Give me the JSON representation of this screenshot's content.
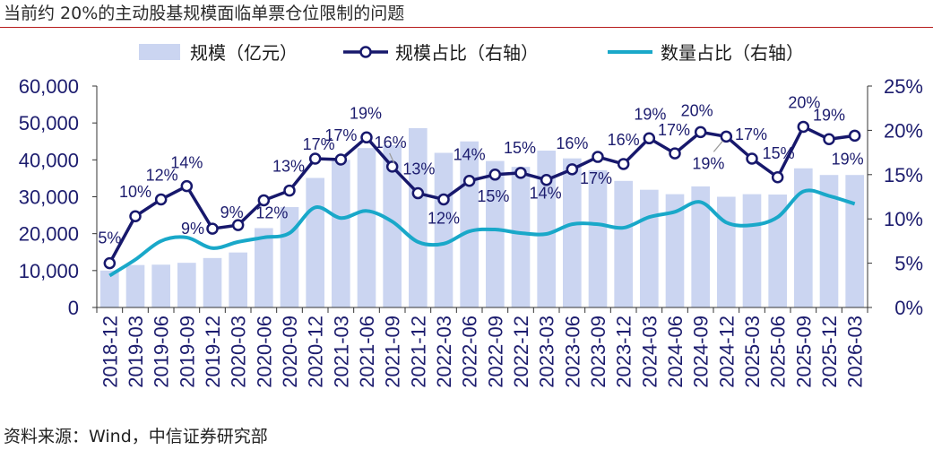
{
  "title": "当前约 20%的主动股基规模面临单票仓位限制的问题",
  "source": "资料来源：Wind，中信证券研究部",
  "colors": {
    "bar": "#cbd5f1",
    "share_line": "#17186c",
    "count_line": "#19a8c9",
    "axis_text": "#1c1c6e",
    "axis_line": "#333333",
    "rule": "#b71c1c"
  },
  "chart_data": {
    "type": "bar",
    "legend_position": "top",
    "grid": false,
    "categories": [
      "2018-12",
      "2019-03",
      "2019-06",
      "2019-09",
      "2019-12",
      "2020-03",
      "2020-06",
      "2020-09",
      "2020-12",
      "2021-03",
      "2021-06",
      "2021-09",
      "2021-12",
      "2022-03",
      "2022-06",
      "2022-09",
      "2022-12",
      "2023-03",
      "2023-06",
      "2023-09",
      "2023-12",
      "2024-03",
      "2024-06",
      "2024-09",
      "2024-12",
      "2025-03",
      "2025-06",
      "2025-09",
      "2025-12",
      "2026-03"
    ],
    "ylim": [
      0,
      60000
    ],
    "y_ticks": [
      "0",
      "10,000",
      "20,000",
      "30,000",
      "40,000",
      "50,000",
      "60,000"
    ],
    "y2lim": [
      0,
      25
    ],
    "y2_ticks": [
      "0%",
      "5%",
      "10%",
      "15%",
      "20%",
      "25%"
    ],
    "series": [
      {
        "name": "规模（亿元）",
        "type": "bar",
        "axis": "left",
        "values": [
          10000,
          11500,
          11600,
          12100,
          13400,
          14900,
          21500,
          27200,
          35100,
          40000,
          43200,
          44000,
          48600,
          41900,
          45000,
          39700,
          38100,
          42500,
          40400,
          37200,
          34300,
          31900,
          30700,
          32800,
          30000,
          30700,
          30600,
          37700,
          35900,
          35900
        ]
      },
      {
        "name": "规模占比（右轴）",
        "type": "line",
        "axis": "right",
        "values": [
          5.0,
          10.3,
          12.2,
          13.7,
          8.9,
          9.3,
          12.1,
          13.2,
          16.8,
          16.7,
          19.2,
          15.9,
          12.9,
          12.2,
          14.3,
          15.0,
          15.2,
          14.4,
          15.6,
          17.0,
          16.2,
          19.1,
          17.4,
          19.8,
          19.3,
          16.8,
          14.7,
          20.4,
          19.0,
          19.4
        ],
        "labels": [
          "5%",
          "10%",
          "12%",
          "14%",
          "9%",
          "9%",
          "12%",
          "13%",
          "17%",
          "17%",
          "19%",
          "16%",
          "13%",
          "12%",
          "14%",
          "15%",
          "15%",
          "14%",
          "16%",
          "17%",
          "16%",
          "19%",
          "17%",
          "20%",
          "19%",
          "17%",
          "15%",
          "20%",
          "19%",
          "19%"
        ]
      },
      {
        "name": "数量占比（右轴）",
        "type": "line",
        "axis": "right",
        "values": [
          3.6,
          5.4,
          7.5,
          7.9,
          6.7,
          7.4,
          7.9,
          8.4,
          11.3,
          10.1,
          10.9,
          9.7,
          7.4,
          7.2,
          8.6,
          8.8,
          8.4,
          8.3,
          9.4,
          9.4,
          9.0,
          10.2,
          10.8,
          11.9,
          9.6,
          9.3,
          10.2,
          13.1,
          12.6,
          11.7
        ]
      }
    ]
  }
}
